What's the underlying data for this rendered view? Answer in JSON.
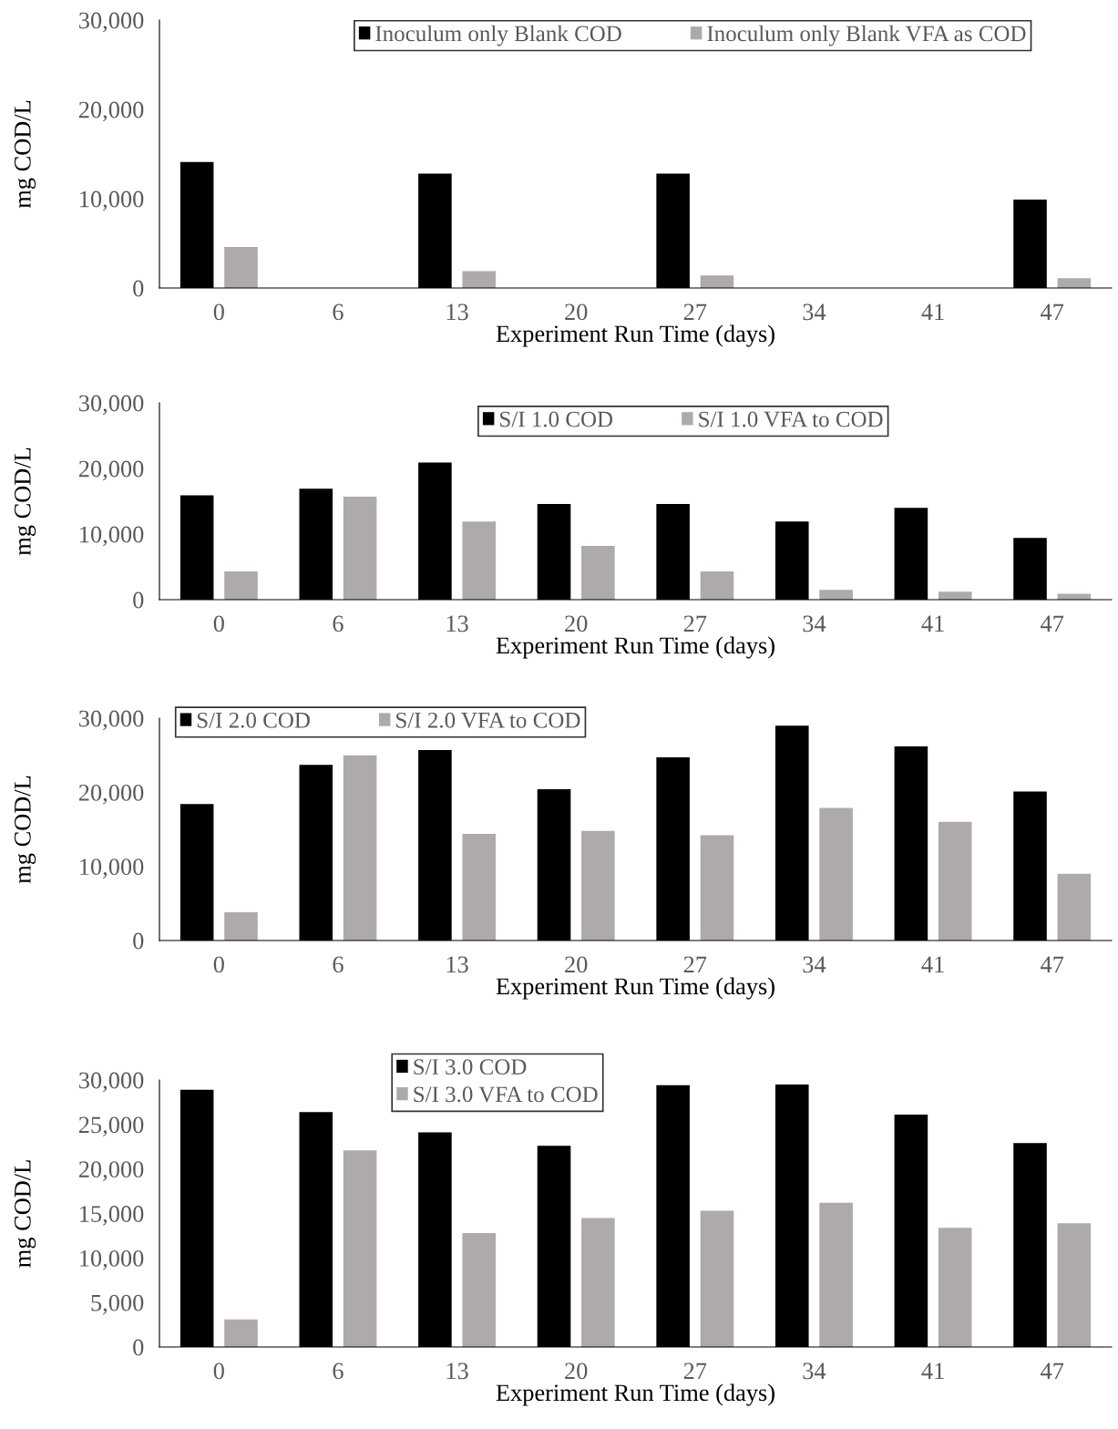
{
  "chart_data": [
    {
      "type": "bar",
      "xlabel": "Experiment Run Time (days)",
      "ylabel": "mg COD/L",
      "categories": [
        "0",
        "6",
        "13",
        "20",
        "27",
        "34",
        "41",
        "47"
      ],
      "ylim": [
        0,
        30000
      ],
      "yticks": [
        {
          "value": 0,
          "label": "0"
        },
        {
          "value": 10000,
          "label": "10,000"
        },
        {
          "value": 20000,
          "label": "20,000"
        },
        {
          "value": 30000,
          "label": "30,000"
        }
      ],
      "legend": "top",
      "grid": false,
      "series": [
        {
          "name": "Inoculum only Blank COD",
          "color": "#000000",
          "values": [
            14100,
            null,
            12800,
            null,
            12800,
            null,
            null,
            9900
          ]
        },
        {
          "name": "Inoculum only Blank VFA as COD",
          "color": "#aeaaaa",
          "values": [
            4600,
            null,
            1900,
            null,
            1400,
            null,
            null,
            1100
          ]
        }
      ]
    },
    {
      "type": "bar",
      "xlabel": "Experiment Run Time (days)",
      "ylabel": "mg COD/L",
      "categories": [
        "0",
        "6",
        "13",
        "20",
        "27",
        "34",
        "41",
        "47"
      ],
      "ylim": [
        0,
        30000
      ],
      "yticks": [
        {
          "value": 0,
          "label": "0"
        },
        {
          "value": 10000,
          "label": "10,000"
        },
        {
          "value": 20000,
          "label": "20,000"
        },
        {
          "value": 30000,
          "label": "30,000"
        }
      ],
      "legend": "top",
      "grid": false,
      "series": [
        {
          "name": "S/I 1.0 COD",
          "color": "#000000",
          "values": [
            15900,
            16900,
            20900,
            14600,
            14600,
            11900,
            14000,
            9400
          ]
        },
        {
          "name": "S/I 1.0 VFA to COD",
          "color": "#aeaaaa",
          "values": [
            4300,
            15700,
            11900,
            8200,
            4300,
            1500,
            1200,
            900
          ]
        }
      ]
    },
    {
      "type": "bar",
      "xlabel": "Experiment Run Time (days)",
      "ylabel": "mg COD/L",
      "categories": [
        "0",
        "6",
        "13",
        "20",
        "27",
        "34",
        "41",
        "47"
      ],
      "ylim": [
        0,
        30000
      ],
      "yticks": [
        {
          "value": 0,
          "label": "0"
        },
        {
          "value": 10000,
          "label": "10,000"
        },
        {
          "value": 20000,
          "label": "20,000"
        },
        {
          "value": 30000,
          "label": "30,000"
        }
      ],
      "legend": "top left",
      "grid": false,
      "series": [
        {
          "name": "S/I 2.0 COD",
          "color": "#000000",
          "values": [
            18400,
            23700,
            25700,
            20400,
            24700,
            29000,
            26200,
            20100
          ]
        },
        {
          "name": "S/I 2.0 VFA to COD",
          "color": "#aeaaaa",
          "values": [
            3800,
            25000,
            14400,
            14800,
            14200,
            17900,
            16000,
            9000
          ]
        }
      ]
    },
    {
      "type": "bar",
      "xlabel": "Experiment Run Time (days)",
      "ylabel": "mg COD/L",
      "categories": [
        "0",
        "6",
        "13",
        "20",
        "27",
        "34",
        "41",
        "47"
      ],
      "ylim": [
        0,
        30000
      ],
      "yticks": [
        {
          "value": 0,
          "label": "0"
        },
        {
          "value": 5000,
          "label": "5,000"
        },
        {
          "value": 10000,
          "label": "10,000"
        },
        {
          "value": 15000,
          "label": "15,000"
        },
        {
          "value": 20000,
          "label": "20,000"
        },
        {
          "value": 25000,
          "label": "25,000"
        },
        {
          "value": 30000,
          "label": "30,000"
        }
      ],
      "legend": "top",
      "grid": false,
      "series": [
        {
          "name": "S/I 3.0 COD",
          "color": "#000000",
          "values": [
            28900,
            26400,
            24100,
            22600,
            29400,
            29500,
            26100,
            22900
          ]
        },
        {
          "name": "S/I 3.0 VFA to COD",
          "color": "#aeaaaa",
          "values": [
            3100,
            22100,
            12800,
            14500,
            15300,
            16200,
            13400,
            13900
          ]
        }
      ]
    }
  ]
}
